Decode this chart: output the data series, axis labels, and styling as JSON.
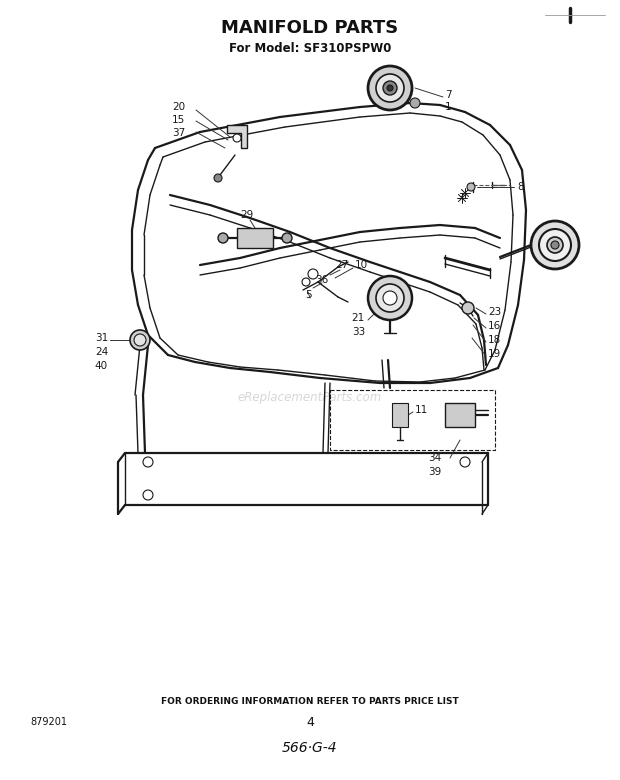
{
  "title": "MANIFOLD PARTS",
  "subtitle": "For Model: SF310PSPW0",
  "footer_text": "FOR ORDERING INFORMATION REFER TO PARTS PRICE LIST",
  "page_number": "4",
  "part_number": "566·G-4",
  "doc_number": "879201",
  "watermark": "eReplacementParts.com",
  "bg_color": "#ffffff",
  "line_color": "#1a1a1a",
  "title_fontsize": 13,
  "subtitle_fontsize": 8.5,
  "footer_fontsize": 6.5,
  "label_fontsize": 7.5
}
